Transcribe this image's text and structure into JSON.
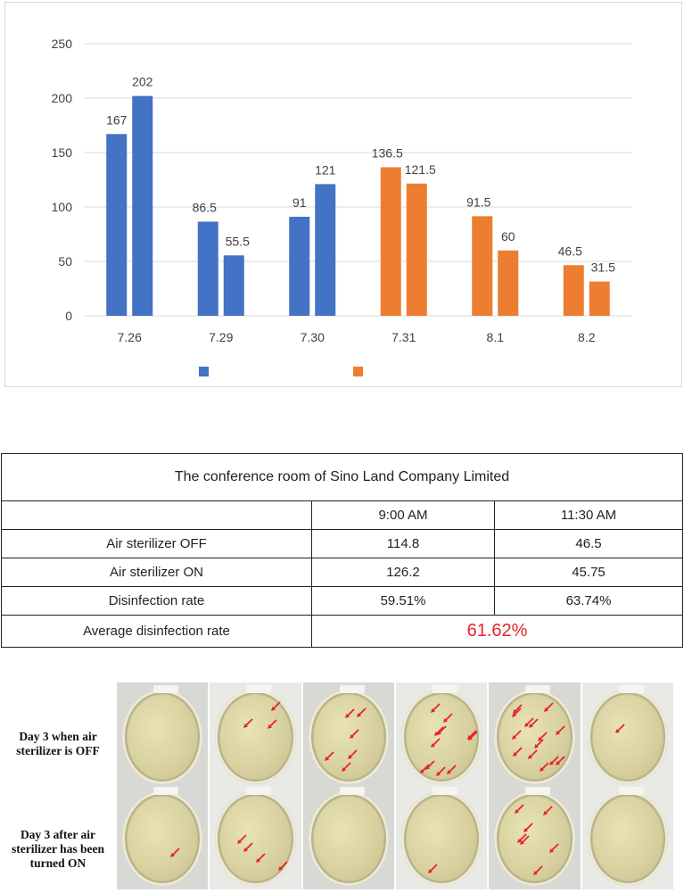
{
  "chart_data": {
    "type": "bar",
    "categories": [
      "7.26",
      "7.29",
      "7.30",
      "7.31",
      "8.1",
      "8.2"
    ],
    "yticks": [
      "0",
      "50",
      "100",
      "150",
      "200",
      "250"
    ],
    "ylim": [
      0,
      250
    ],
    "grid": true,
    "legend_position": "bottom",
    "series": [
      {
        "color": "#4472c4",
        "values": [
          167,
          86.5,
          91,
          136.5,
          91.5,
          46.5
        ],
        "value_labels": [
          "167",
          "86.5",
          "91",
          "136.5",
          "91.5",
          "46.5"
        ]
      },
      {
        "color": "#4472c4",
        "values": [
          202,
          55.5,
          121,
          121.5,
          60,
          31.5
        ],
        "value_labels": [
          "202",
          "55.5",
          "121",
          "121.5",
          "60",
          "31.5"
        ]
      }
    ],
    "bar_colors_by_category": [
      "#4472c4",
      "#4472c4",
      "#4472c4",
      "#ed7d31",
      "#ed7d31",
      "#ed7d31"
    ],
    "legend_swatches": [
      "#4472c4",
      "#ed7d31"
    ]
  },
  "table": {
    "title": "The conference room of Sino Land Company Limited",
    "columns": [
      "",
      "9:00 AM",
      "11:30 AM"
    ],
    "rows": [
      {
        "label": "Air sterilizer OFF",
        "am9": "114.8",
        "am1130": "46.5"
      },
      {
        "label": "Air sterilizer ON",
        "am9": "126.2",
        "am1130": "45.75"
      },
      {
        "label": "Disinfection rate",
        "am9": "59.51%",
        "am1130": "63.74%"
      }
    ],
    "average": {
      "label": "Average disinfection rate",
      "value": "61.62%"
    }
  },
  "photos": {
    "label_off": "Day 3 when air sterilizer is OFF",
    "label_on": "Day 3 after air sterilizer has been turned ON",
    "arrow_color": "#e8232a",
    "arrow_counts_off": [
      0,
      3,
      6,
      11,
      14,
      1
    ],
    "arrow_counts_on": [
      1,
      4,
      0,
      1,
      7,
      0
    ]
  }
}
